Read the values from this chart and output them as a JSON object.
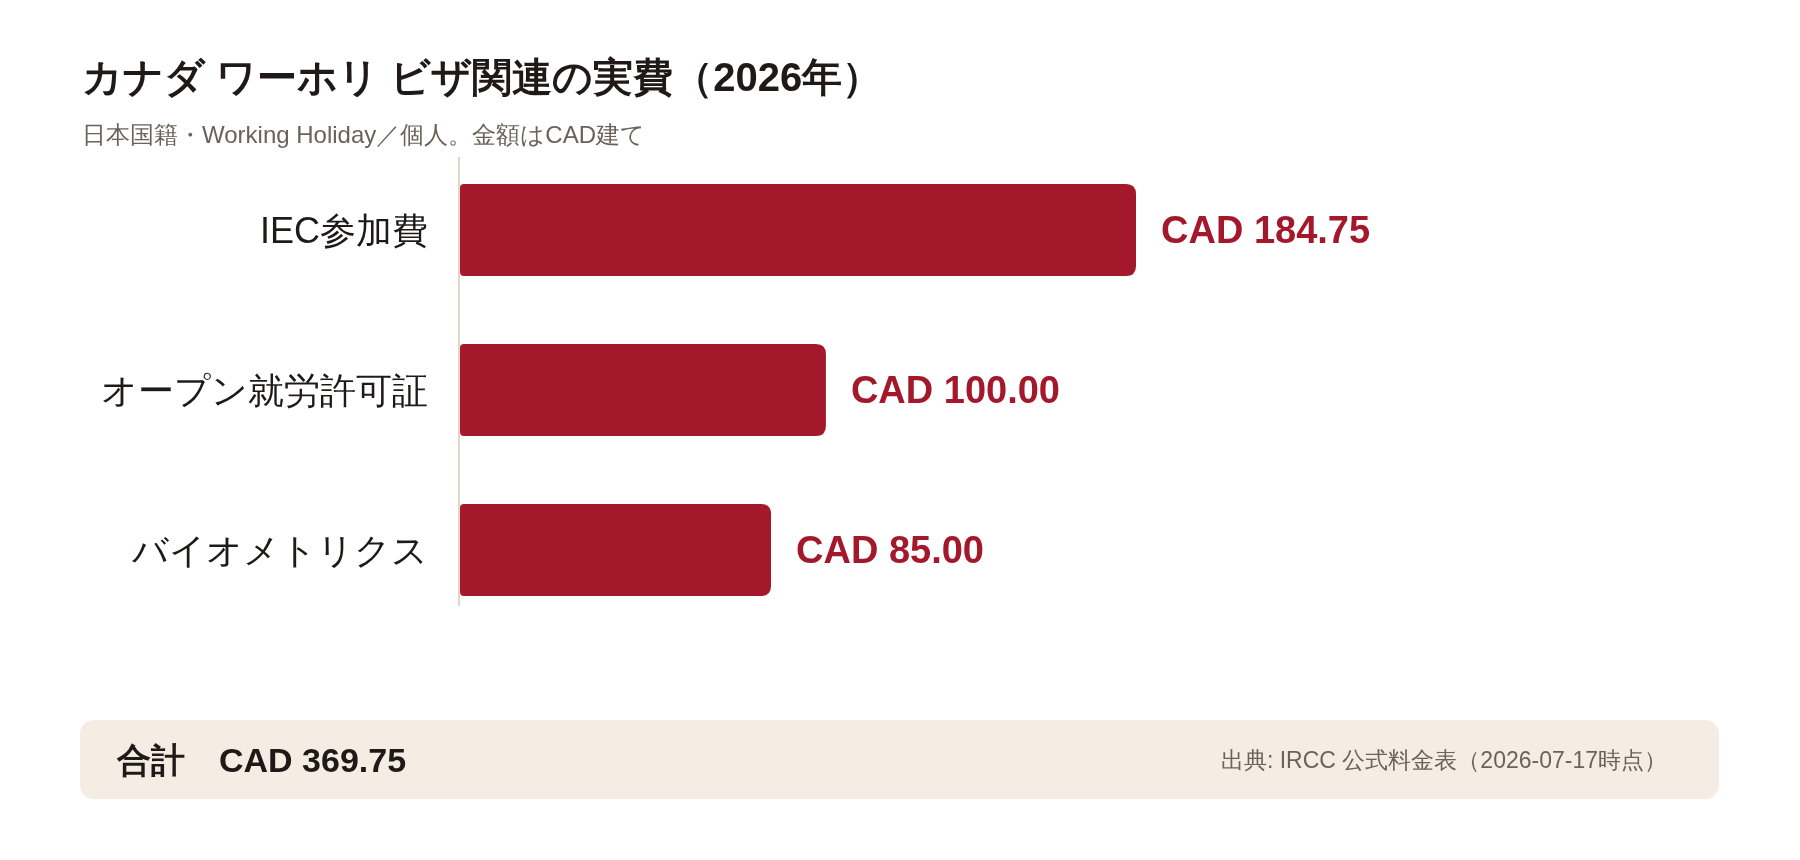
{
  "chart_data": {
    "type": "bar",
    "orientation": "horizontal",
    "title": "カナダ ワーホリ ビザ関連の実費（2026年）",
    "subtitle": "日本国籍・Working Holiday／個人。金額はCAD建て",
    "categories": [
      "IEC参加費",
      "オープン就労許可証",
      "バイオメトリクス"
    ],
    "values": [
      184.75,
      100,
      85
    ],
    "value_labels": [
      "CAD 184.75",
      "CAD 100.00",
      "CAD 85.00"
    ],
    "color": "#a3182b",
    "tick_labels": "y",
    "annotations": [
      "合計　CAD 369.75",
      "出典: IRCC 公式料金表（2026-07-17時点）"
    ]
  }
}
